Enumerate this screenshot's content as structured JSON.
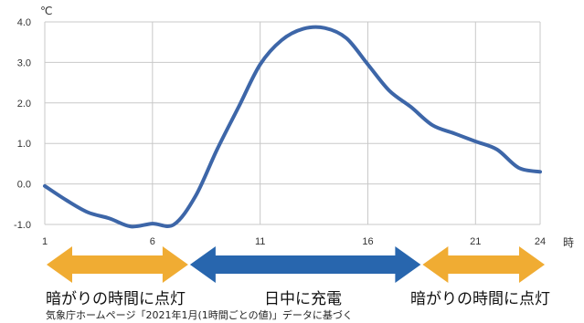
{
  "chart_data": {
    "type": "line",
    "ylabel": "℃",
    "xlabel": "時",
    "xlim": [
      1,
      24
    ],
    "ylim": [
      -1.0,
      4.0
    ],
    "x_ticks": [
      "1",
      "6",
      "11",
      "16",
      "21",
      "24"
    ],
    "y_ticks": [
      "4.0",
      "3.0",
      "2.0",
      "1.0",
      "0.0",
      "-1.0"
    ],
    "grid": true,
    "series": [
      {
        "color": "#3d66a8",
        "x": [
          1,
          2,
          3,
          4,
          5,
          6,
          7,
          8,
          9,
          10,
          11,
          12,
          13,
          14,
          15,
          16,
          17,
          18,
          19,
          20,
          21,
          22,
          23,
          24
        ],
        "y": [
          -0.05,
          -0.4,
          -0.7,
          -0.85,
          -1.05,
          -0.98,
          -1.0,
          -0.3,
          0.85,
          1.9,
          2.95,
          3.55,
          3.83,
          3.85,
          3.6,
          2.95,
          2.3,
          1.9,
          1.45,
          1.25,
          1.05,
          0.85,
          0.4,
          0.3
        ]
      }
    ],
    "periods": [
      {
        "label": "暗がりの時間に点灯",
        "from": 1,
        "to": 7.7,
        "color": "#f0ac33"
      },
      {
        "label": "日中に充電",
        "from": 7.7,
        "to": 18.5,
        "color": "#2866ae"
      },
      {
        "label": "暗がりの時間に点灯",
        "from": 18.5,
        "to": 24,
        "color": "#f0ac33"
      }
    ]
  },
  "source_note": "気象庁ホームページ「2021年1月(1時間ごとの値)」データに基づく"
}
